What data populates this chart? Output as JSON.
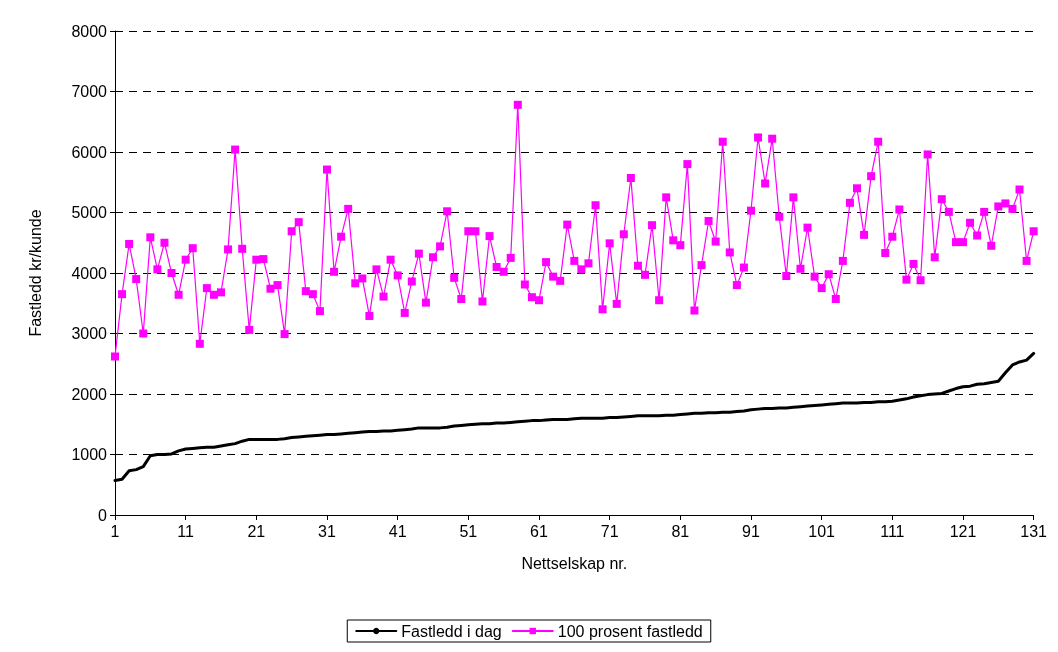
{
  "chart_data": {
    "type": "line",
    "xlabel": "Nettselskap nr.",
    "ylabel": "Fastledd kr/kunde",
    "x": [
      1,
      2,
      3,
      4,
      5,
      6,
      7,
      8,
      9,
      10,
      11,
      12,
      13,
      14,
      15,
      16,
      17,
      18,
      19,
      20,
      21,
      22,
      23,
      24,
      25,
      26,
      27,
      28,
      29,
      30,
      31,
      32,
      33,
      34,
      35,
      36,
      37,
      38,
      39,
      40,
      41,
      42,
      43,
      44,
      45,
      46,
      47,
      48,
      49,
      50,
      51,
      52,
      53,
      54,
      55,
      56,
      57,
      58,
      59,
      60,
      61,
      62,
      63,
      64,
      65,
      66,
      67,
      68,
      69,
      70,
      71,
      72,
      73,
      74,
      75,
      76,
      77,
      78,
      79,
      80,
      81,
      82,
      83,
      84,
      85,
      86,
      87,
      88,
      89,
      90,
      91,
      92,
      93,
      94,
      95,
      96,
      97,
      98,
      99,
      100,
      101,
      102,
      103,
      104,
      105,
      106,
      107,
      108,
      109,
      110,
      111,
      112,
      113,
      114,
      115,
      116,
      117,
      118,
      119,
      120,
      121,
      122,
      123,
      124,
      125,
      126,
      127,
      128,
      129,
      130,
      131
    ],
    "series": [
      {
        "name": "Fastledd i dag",
        "color": "#000000",
        "marker": "none",
        "values": [
          570,
          590,
          730,
          750,
          800,
          980,
          1000,
          1000,
          1010,
          1060,
          1090,
          1100,
          1110,
          1120,
          1120,
          1140,
          1160,
          1180,
          1220,
          1250,
          1250,
          1250,
          1250,
          1250,
          1260,
          1280,
          1290,
          1300,
          1310,
          1320,
          1330,
          1330,
          1340,
          1350,
          1360,
          1370,
          1380,
          1380,
          1390,
          1390,
          1400,
          1410,
          1420,
          1440,
          1440,
          1440,
          1440,
          1450,
          1470,
          1480,
          1490,
          1500,
          1510,
          1510,
          1520,
          1520,
          1530,
          1540,
          1550,
          1560,
          1560,
          1570,
          1580,
          1580,
          1580,
          1590,
          1600,
          1600,
          1600,
          1600,
          1610,
          1610,
          1620,
          1630,
          1640,
          1640,
          1640,
          1640,
          1650,
          1650,
          1660,
          1670,
          1680,
          1680,
          1690,
          1690,
          1700,
          1700,
          1710,
          1720,
          1740,
          1750,
          1760,
          1760,
          1770,
          1770,
          1780,
          1790,
          1800,
          1810,
          1820,
          1830,
          1840,
          1850,
          1850,
          1850,
          1860,
          1860,
          1870,
          1870,
          1880,
          1900,
          1920,
          1950,
          1970,
          1990,
          2000,
          2010,
          2050,
          2090,
          2120,
          2130,
          2160,
          2170,
          2190,
          2210,
          2350,
          2480,
          2530,
          2560,
          2670
        ]
      },
      {
        "name": "100 prosent fastledd",
        "color": "#ff00ff",
        "marker": "square",
        "values": [
          2620,
          3650,
          4480,
          3900,
          3000,
          4590,
          4060,
          4500,
          4000,
          3640,
          4220,
          4410,
          2830,
          3750,
          3640,
          3680,
          4390,
          6040,
          4400,
          3060,
          4220,
          4230,
          3740,
          3800,
          2990,
          4690,
          4840,
          3700,
          3650,
          3370,
          5710,
          4020,
          4600,
          5060,
          3830,
          3910,
          3290,
          4060,
          3610,
          4220,
          3960,
          3340,
          3860,
          4320,
          3510,
          4260,
          4440,
          5020,
          3920,
          3570,
          4690,
          4690,
          3530,
          4610,
          4100,
          4020,
          4250,
          6780,
          3810,
          3600,
          3550,
          4180,
          3940,
          3870,
          4800,
          4200,
          4060,
          4160,
          5120,
          3400,
          4490,
          3490,
          4640,
          5570,
          4120,
          3970,
          4790,
          3550,
          5250,
          4540,
          4460,
          5800,
          3380,
          4130,
          4860,
          4520,
          6170,
          4340,
          3800,
          4090,
          5030,
          6240,
          5480,
          6220,
          4930,
          3950,
          5250,
          4070,
          4750,
          3940,
          3750,
          3980,
          3570,
          4200,
          5160,
          5400,
          4630,
          5600,
          6170,
          4330,
          4600,
          5050,
          3890,
          4150,
          3880,
          5960,
          4260,
          5220,
          5010,
          4510,
          4510,
          4830,
          4620,
          5010,
          4450,
          5100,
          5150,
          5060,
          5380,
          4200,
          4690
        ]
      }
    ],
    "xlim": [
      1,
      131
    ],
    "xticks": [
      1,
      11,
      21,
      31,
      41,
      51,
      61,
      71,
      81,
      91,
      101,
      111,
      121,
      131
    ],
    "ylim": [
      0,
      8000
    ],
    "yticks": [
      0,
      1000,
      2000,
      3000,
      4000,
      5000,
      6000,
      7000,
      8000
    ],
    "grid": "y",
    "legend": "bottom"
  }
}
